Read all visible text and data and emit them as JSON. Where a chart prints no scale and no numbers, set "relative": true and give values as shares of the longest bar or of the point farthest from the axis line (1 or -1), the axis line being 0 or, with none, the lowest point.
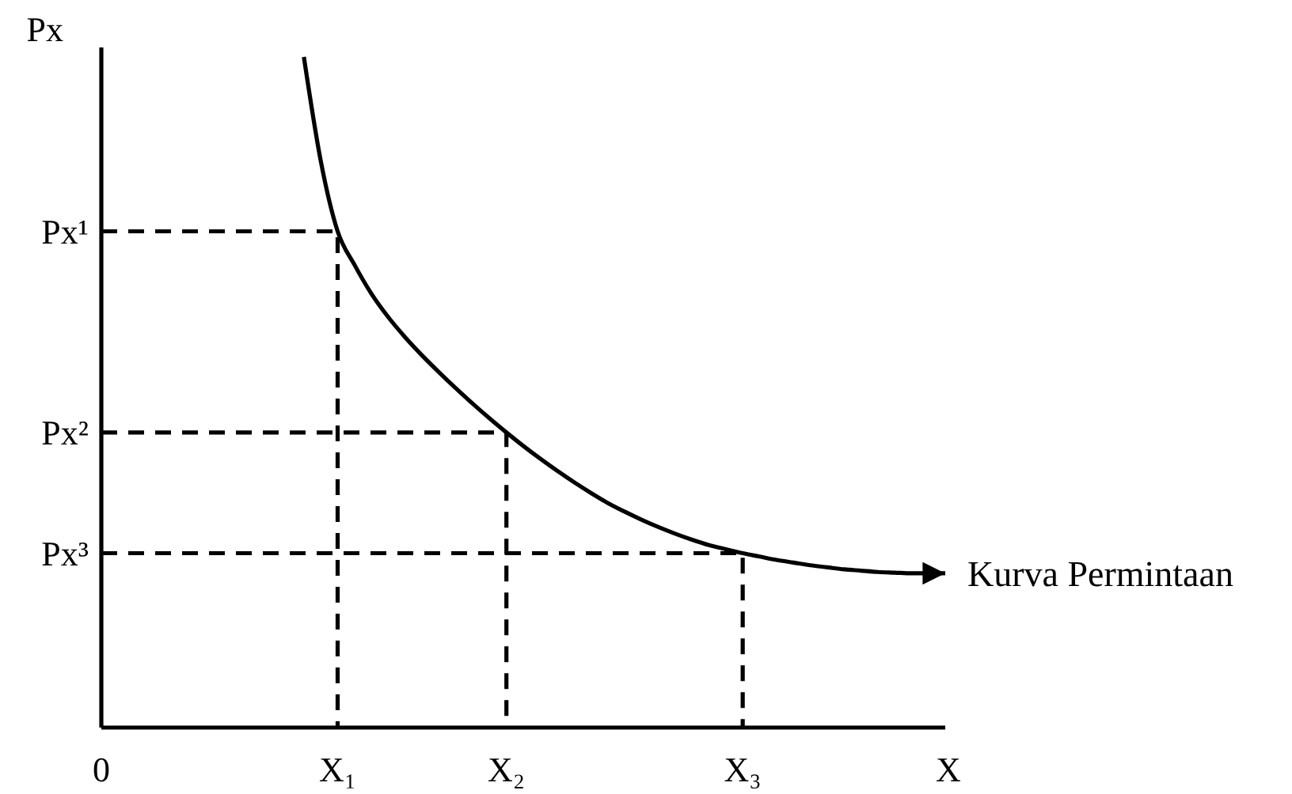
{
  "chart_data": {
    "type": "line",
    "relative": true,
    "xlabel": "X",
    "ylabel": "Px",
    "categories": [
      "0",
      null,
      null,
      null,
      null,
      null,
      null,
      null,
      null,
      null,
      null,
      null,
      null,
      null,
      "X₁",
      null,
      null,
      null,
      null,
      null,
      null,
      null,
      null,
      null,
      "X₂",
      null,
      null,
      null,
      null,
      null,
      null,
      null,
      null,
      null,
      null,
      null,
      null,
      null,
      "X₃",
      null,
      null,
      null,
      null,
      null,
      null,
      null,
      null,
      null,
      null,
      null,
      null
    ],
    "series": [
      {
        "name": "Kurva Permintaan",
        "color": "#000000",
        "values": [
          null,
          null,
          null,
          null,
          null,
          null,
          null,
          null,
          null,
          null,
          null,
          null,
          1,
          0.845,
          0.74,
          0.69,
          0.647,
          0.612,
          0.582,
          0.555,
          0.53,
          0.506,
          0.483,
          0.461,
          0.44,
          0.42,
          0.401,
          0.383,
          0.366,
          0.35,
          0.335,
          0.322,
          0.31,
          0.299,
          0.289,
          0.28,
          0.272,
          0.266,
          0.26,
          0.255,
          0.25,
          0.246,
          0.242,
          0.239,
          0.236,
          0.234,
          0.232,
          0.231,
          0.23,
          0.23,
          0.23
        ]
      },
      {
        "name": "Px¹",
        "color": "#000000",
        "line_style": "dashed",
        "x": [
          "0",
          "X₁",
          "X₁"
        ],
        "values": [
          0.74,
          0.74,
          0
        ]
      },
      {
        "name": "Px²",
        "color": "#000000",
        "line_style": "dashed",
        "x": [
          "0",
          "X₂",
          "X₂"
        ],
        "values": [
          0.44,
          0.44,
          0
        ]
      },
      {
        "name": "Px³",
        "color": "#000000",
        "line_style": "dashed",
        "x": [
          "0",
          "X₃",
          "X₃"
        ],
        "values": [
          0.26,
          0.26,
          0
        ]
      }
    ]
  }
}
